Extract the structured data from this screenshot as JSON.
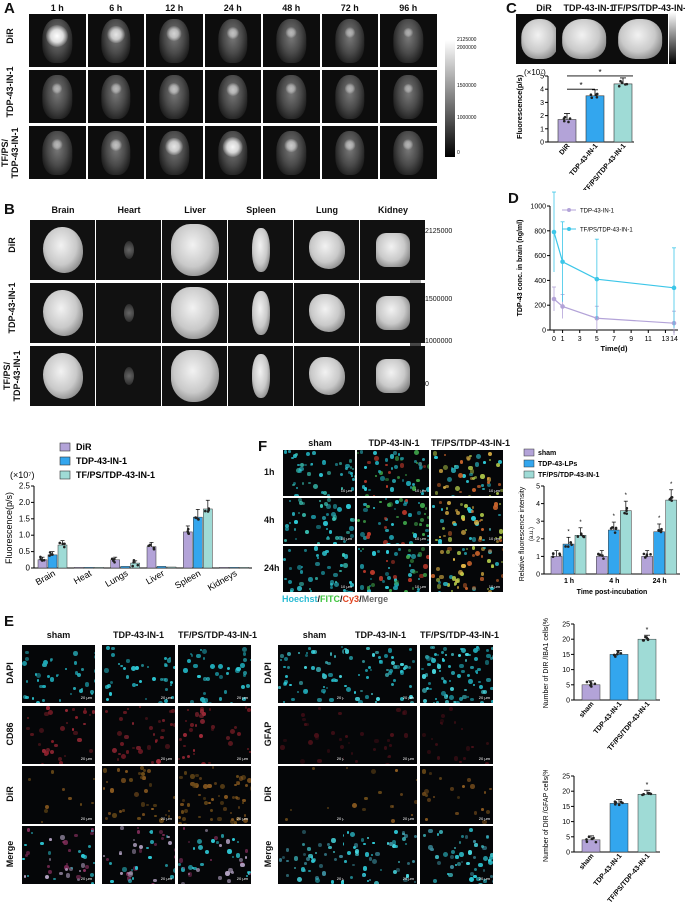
{
  "panel_labels": {
    "a": "A",
    "b": "B",
    "c": "C",
    "d": "D",
    "e": "E",
    "f": "F"
  },
  "panelA": {
    "times": [
      "1 h",
      "6 h",
      "12 h",
      "24 h",
      "48 h",
      "72 h",
      "96 h"
    ],
    "rows": [
      "DiR",
      "TDP-43-IN-1",
      "TF/PS/\nTDP-43-IN-1"
    ],
    "row_lines": [
      [
        "DiR"
      ],
      [
        "TDP-43-IN-1"
      ],
      [
        "TF/PS/",
        "TDP-43-IN-1"
      ]
    ],
    "colorbar": [
      "2125000",
      "2000000",
      "1500000",
      "1000000",
      "0"
    ],
    "signal": [
      [
        1,
        0.7,
        0.5,
        0.3,
        0.2,
        0.15,
        0.1
      ],
      [
        0.15,
        0.2,
        0.3,
        0.35,
        0.2,
        0.15,
        0.1
      ],
      [
        0.2,
        0.3,
        0.7,
        0.9,
        0.4,
        0.25,
        0.15
      ]
    ]
  },
  "panelB": {
    "organs": [
      "Brain",
      "Heart",
      "Liver",
      "Spleen",
      "Lung",
      "Kidney"
    ],
    "rows": [
      [
        "DiR"
      ],
      [
        "TDP-43-IN-1"
      ],
      [
        "TF/PS/",
        "TDP-43-IN-1"
      ]
    ],
    "colorbar": [
      "2125000",
      "1500000",
      "1000000",
      "0"
    ]
  },
  "panelC": {
    "groups": [
      "DiR",
      "TDP-43-IN-1",
      "TF/PS/TDP-43-IN-1"
    ],
    "multiplier": "(×10⁷)",
    "sig1": "*",
    "sig2": "*",
    "colorbar": [
      "",
      "",
      "",
      "",
      ""
    ]
  },
  "panelE": {
    "groups": [
      "sham",
      "TDP-43-IN-1",
      "TF/PS/TDP-43-IN-1"
    ],
    "left_rows": [
      "DAPI",
      "CD86",
      "DiR",
      "Merge"
    ],
    "right_rows": [
      "DAPI",
      "GFAP",
      "DiR",
      "Merge"
    ],
    "scale": "20 μm"
  },
  "panelF": {
    "groups": [
      "sham",
      "TDP-43-IN-1",
      "TF/PS/TDP-43-IN-1"
    ],
    "rows": [
      "1h",
      "4h",
      "24h"
    ],
    "stain": {
      "hoechst": "Hoechst",
      "sep1": "/",
      "fitc": "FITC",
      "sep2": "/",
      "cy3": "Cy3",
      "sep3": "/",
      "merge": "Merge"
    },
    "scale": "10 μm"
  },
  "colors": {
    "purple": "#b3a3d8",
    "blue": "#33a6ee",
    "teal": "#9fdbd6",
    "star": "#111111"
  },
  "chart_data": [
    {
      "type": "bar",
      "id": "organ-fluorescence",
      "categories": [
        "Brain",
        "Heat",
        "Lungs",
        "Liver",
        "Spleen",
        "Kidneys"
      ],
      "ylabel": "Fluorescence(p/s)",
      "multiplier": "(×10⁷)",
      "ylim": [
        0,
        2.5
      ],
      "yticks": [
        "0",
        "0.5",
        "1.0",
        "1.5",
        "2.0",
        "2.5"
      ],
      "series": [
        {
          "name": "DiR",
          "values": [
            0.25,
            0.02,
            0.25,
            0.65,
            1.1,
            0.02
          ]
        },
        {
          "name": "TDP-43-IN-1",
          "values": [
            0.4,
            0.02,
            0.05,
            0.05,
            1.55,
            0.02
          ]
        },
        {
          "name": "TF/PS/TDP-43-IN-1",
          "values": [
            0.7,
            0.02,
            0.15,
            0.03,
            1.8,
            0.02
          ]
        }
      ],
      "legend": "top-left"
    },
    {
      "type": "bar",
      "id": "brain-fluorescence-c",
      "categories": [
        "DiR",
        "TDP-43-IN-1",
        "TF/PS/TDP-43-IN-1"
      ],
      "ylabel": "Fluorescence(p/s)",
      "ylim": [
        0,
        5
      ],
      "yticks": [
        "0",
        "1",
        "2",
        "3",
        "4",
        "5"
      ],
      "values": [
        1.7,
        3.5,
        4.4
      ]
    },
    {
      "type": "line",
      "id": "tdp43-conc-d",
      "xlabel": "Time(d)",
      "ylabel": "TDP-43 conc. in brain (ng/ml)",
      "x": [
        0,
        1,
        5,
        14
      ],
      "xticks": [
        "0",
        "1",
        "3",
        "5",
        "7",
        "9",
        "11",
        "13",
        "14"
      ],
      "xlim": [
        0,
        14
      ],
      "ylim": [
        0,
        1000
      ],
      "yticks": [
        "0",
        "200",
        "400",
        "600",
        "800",
        "1000"
      ],
      "series": [
        {
          "name": "TDP-43-IN-1",
          "values": [
            250,
            190,
            95,
            55
          ]
        },
        {
          "name": "TF/PS/TDP-43-IN-1",
          "values": [
            790,
            550,
            410,
            340
          ]
        }
      ],
      "legend": "top-right"
    },
    {
      "type": "bar",
      "id": "relative-fluorescence-f",
      "categories": [
        "1 h",
        "4 h",
        "24 h"
      ],
      "xlabel": "Time post-incubation",
      "ylabel": "Relative fluorescence intensity",
      "unit": "(a.u.)",
      "ylim": [
        0,
        5
      ],
      "yticks": [
        "0",
        "1",
        "2",
        "3",
        "4",
        "5"
      ],
      "series": [
        {
          "name": "sham",
          "values": [
            1.0,
            1.0,
            1.0
          ]
        },
        {
          "name": "TDP-43-LPs",
          "values": [
            1.7,
            2.5,
            2.4
          ]
        },
        {
          "name": "TF/PS/TDP-43-IN-1",
          "values": [
            2.2,
            3.6,
            4.2
          ]
        }
      ],
      "legend": "top-left"
    },
    {
      "type": "bar",
      "id": "dir-iba1-e",
      "categories": [
        "sham",
        "TDP-43-IN-1",
        "TF/PS/TDP-43-IN-1"
      ],
      "ylabel": "Number of DIR /IBA1 cells(%)",
      "ylim": [
        0,
        25
      ],
      "yticks": [
        "0",
        "5",
        "10",
        "15",
        "20",
        "25"
      ],
      "values": [
        5,
        15,
        20
      ]
    },
    {
      "type": "bar",
      "id": "dir-gfap-e",
      "categories": [
        "sham",
        "TDP-43-IN-1",
        "TF/PS/TDP-43-IN-1"
      ],
      "ylabel": "Number of DIR /GFAP cells(%)",
      "ylim": [
        0,
        25
      ],
      "yticks": [
        "0",
        "5",
        "10",
        "15",
        "20",
        "25"
      ],
      "values": [
        4,
        16,
        19
      ]
    }
  ]
}
